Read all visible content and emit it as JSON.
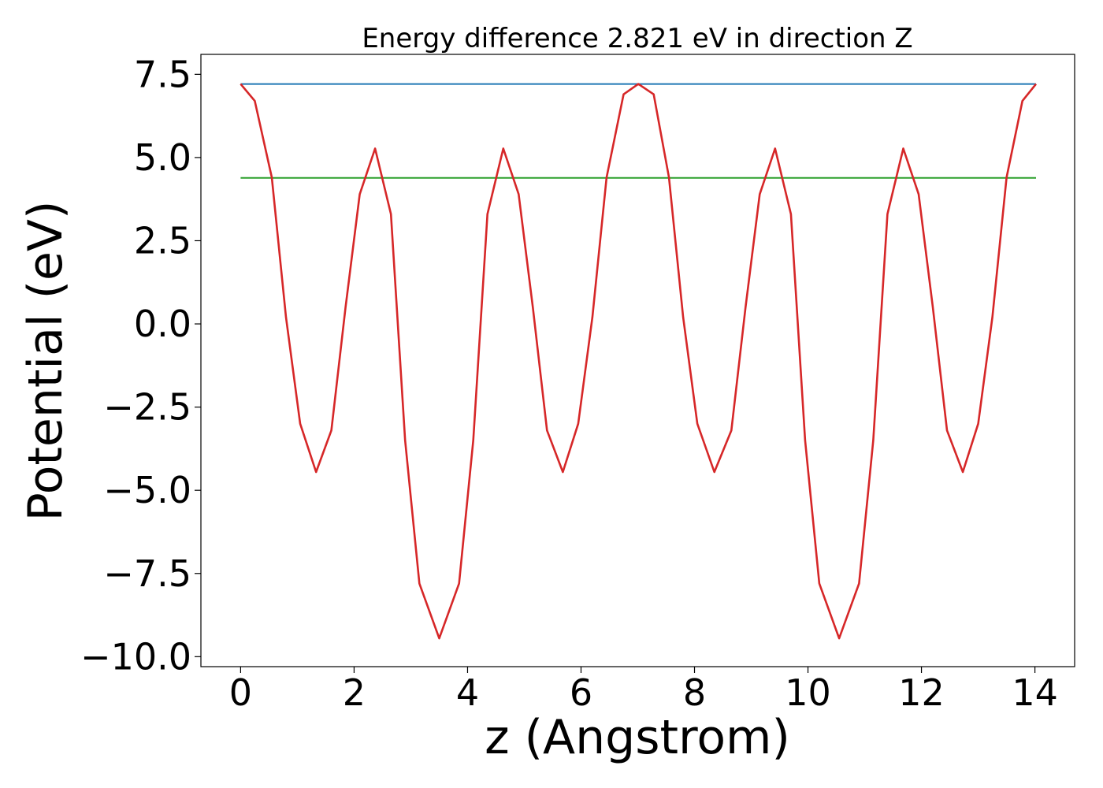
{
  "chart_data": {
    "type": "line",
    "title": "Energy difference 2.821 eV in direction Z",
    "xlabel": "z (Angstrom)",
    "ylabel": "Potential (eV)",
    "xlim": [
      -0.7,
      14.7
    ],
    "ylim": [
      -10.3,
      8.1
    ],
    "x_ticks": [
      0,
      2,
      4,
      6,
      8,
      10,
      12,
      14
    ],
    "x_tick_labels": [
      "0",
      "2",
      "4",
      "6",
      "8",
      "10",
      "12",
      "14"
    ],
    "y_ticks": [
      7.5,
      5.0,
      2.5,
      0.0,
      -2.5,
      -5.0,
      -7.5,
      -10.0
    ],
    "y_tick_labels": [
      "7.5",
      "5.0",
      "2.5",
      "0.0",
      "−2.5",
      "−5.0",
      "−7.5",
      "−10.0"
    ],
    "grid": false,
    "series": [
      {
        "color": "#1f77b4",
        "x": [
          0,
          14.02
        ],
        "y": [
          7.21,
          7.21
        ]
      },
      {
        "color": "#2ca02c",
        "x": [
          0,
          14.02
        ],
        "y": [
          4.39,
          4.39
        ]
      },
      {
        "color": "#d62728",
        "x": [
          0.0,
          0.25,
          0.55,
          0.8,
          1.05,
          1.33,
          1.6,
          1.85,
          2.1,
          2.37,
          2.65,
          2.9,
          3.15,
          3.5,
          3.85,
          4.1,
          4.35,
          4.63,
          4.9,
          5.15,
          5.4,
          5.68,
          5.95,
          6.2,
          6.45,
          6.75,
          7.01,
          7.28,
          7.55,
          7.8,
          8.05,
          8.35,
          8.65,
          8.9,
          9.15,
          9.42,
          9.7,
          9.95,
          10.2,
          10.55,
          10.9,
          11.15,
          11.4,
          11.68,
          11.95,
          12.2,
          12.45,
          12.73,
          13.0,
          13.25,
          13.5,
          13.78,
          14.02
        ],
        "y": [
          7.21,
          6.7,
          4.4,
          0.2,
          -3.0,
          -4.45,
          -3.2,
          0.5,
          3.9,
          5.27,
          3.3,
          -3.5,
          -7.8,
          -9.45,
          -7.8,
          -3.5,
          3.3,
          5.27,
          3.9,
          0.5,
          -3.2,
          -4.45,
          -3.0,
          0.2,
          4.4,
          6.9,
          7.21,
          6.9,
          4.4,
          0.2,
          -3.0,
          -4.45,
          -3.2,
          0.5,
          3.9,
          5.27,
          3.3,
          -3.5,
          -7.8,
          -9.45,
          -7.8,
          -3.5,
          3.3,
          5.27,
          3.9,
          0.5,
          -3.2,
          -4.45,
          -3.0,
          0.2,
          4.4,
          6.7,
          7.21
        ]
      }
    ]
  }
}
